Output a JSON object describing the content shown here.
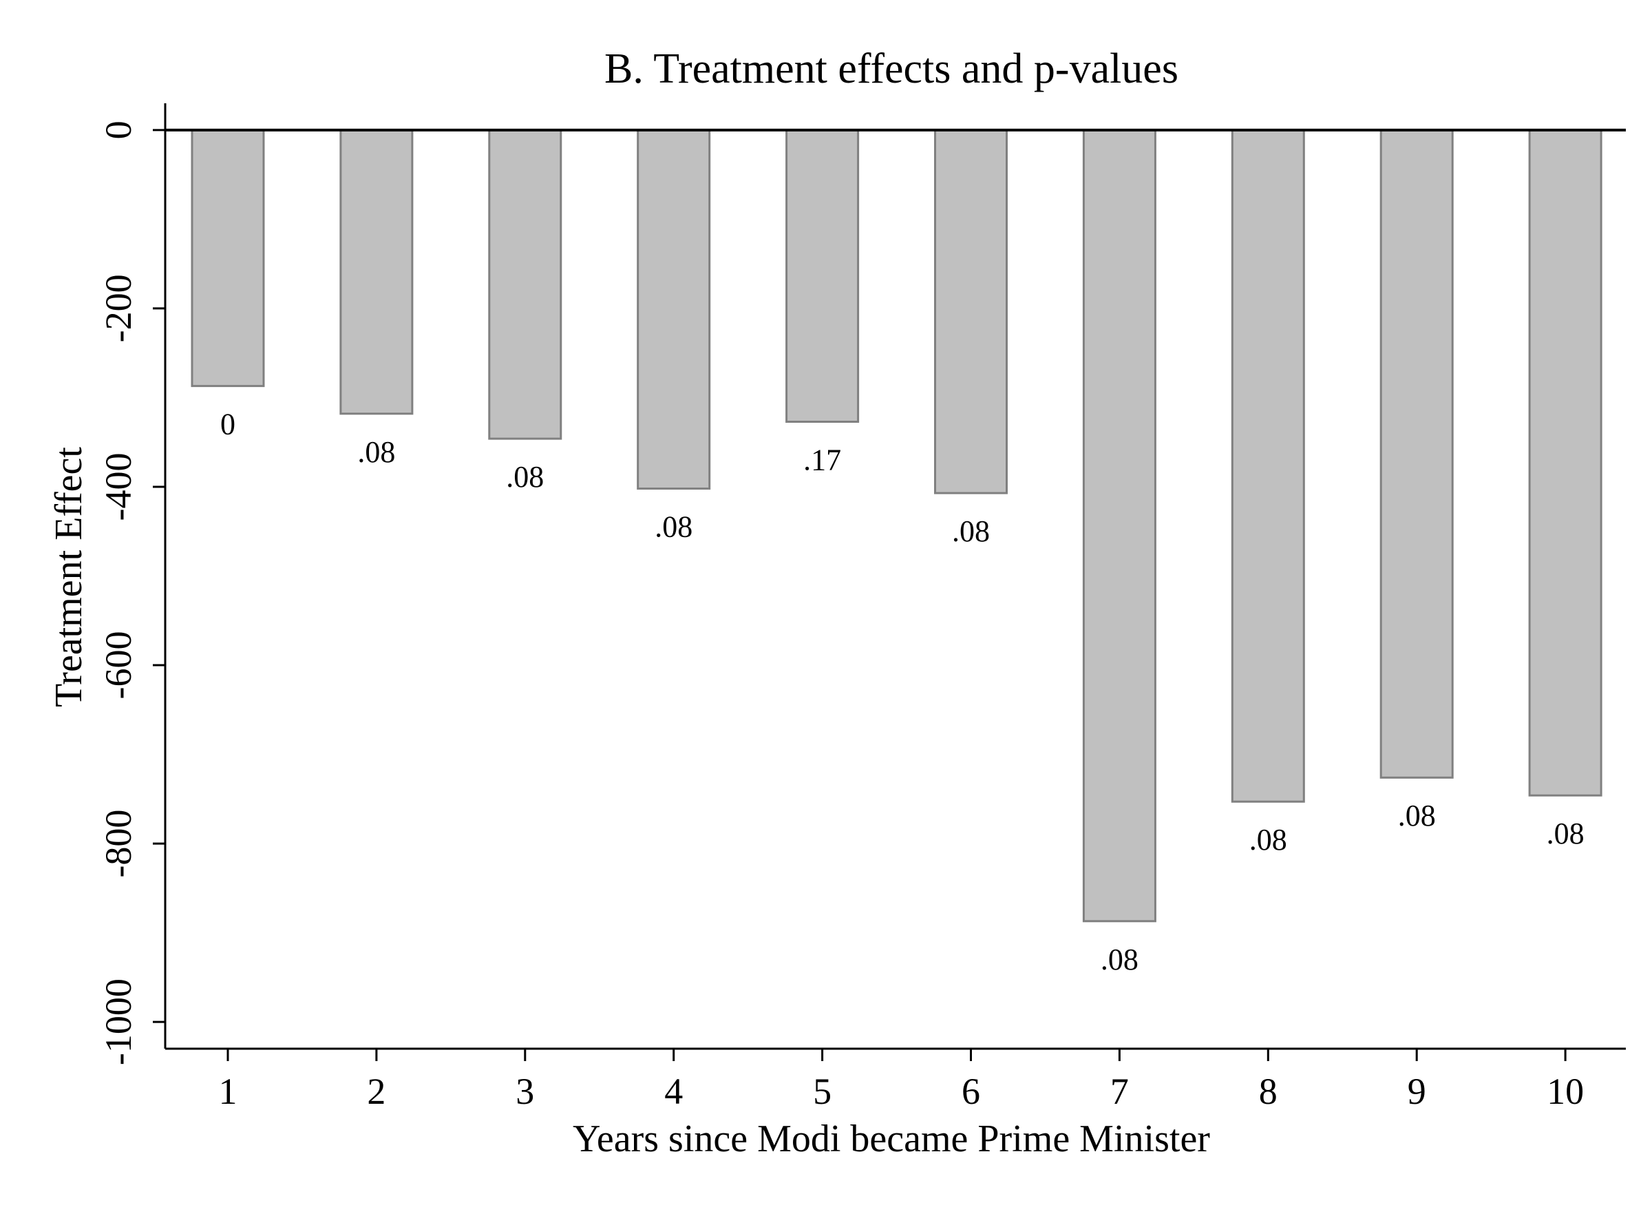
{
  "chart_data": {
    "type": "bar",
    "title": "B. Treatment effects and p-values",
    "xlabel": "Years since Modi became Prime Minister",
    "ylabel": "Treatment Effect",
    "categories": [
      "1",
      "2",
      "3",
      "4",
      "5",
      "6",
      "7",
      "8",
      "9",
      "10"
    ],
    "values": [
      -287,
      -318,
      -346,
      -402,
      -327,
      -407,
      -887,
      -753,
      -726,
      -746
    ],
    "bar_labels": [
      "0",
      ".08",
      ".08",
      ".08",
      ".17",
      ".08",
      ".08",
      ".08",
      ".08",
      ".08"
    ],
    "yticks": [
      0,
      -200,
      -400,
      -600,
      -800,
      -1000
    ],
    "ytick_labels": [
      "0",
      "-200",
      "-400",
      "-600",
      "-800",
      "-1000"
    ],
    "ylim": [
      -1030,
      30
    ],
    "grid": false,
    "legend": "none",
    "colors": {
      "bar_fill": "#c0c0c0",
      "bar_stroke": "#808080",
      "axis": "#000000",
      "zero_line": "#000000"
    }
  }
}
